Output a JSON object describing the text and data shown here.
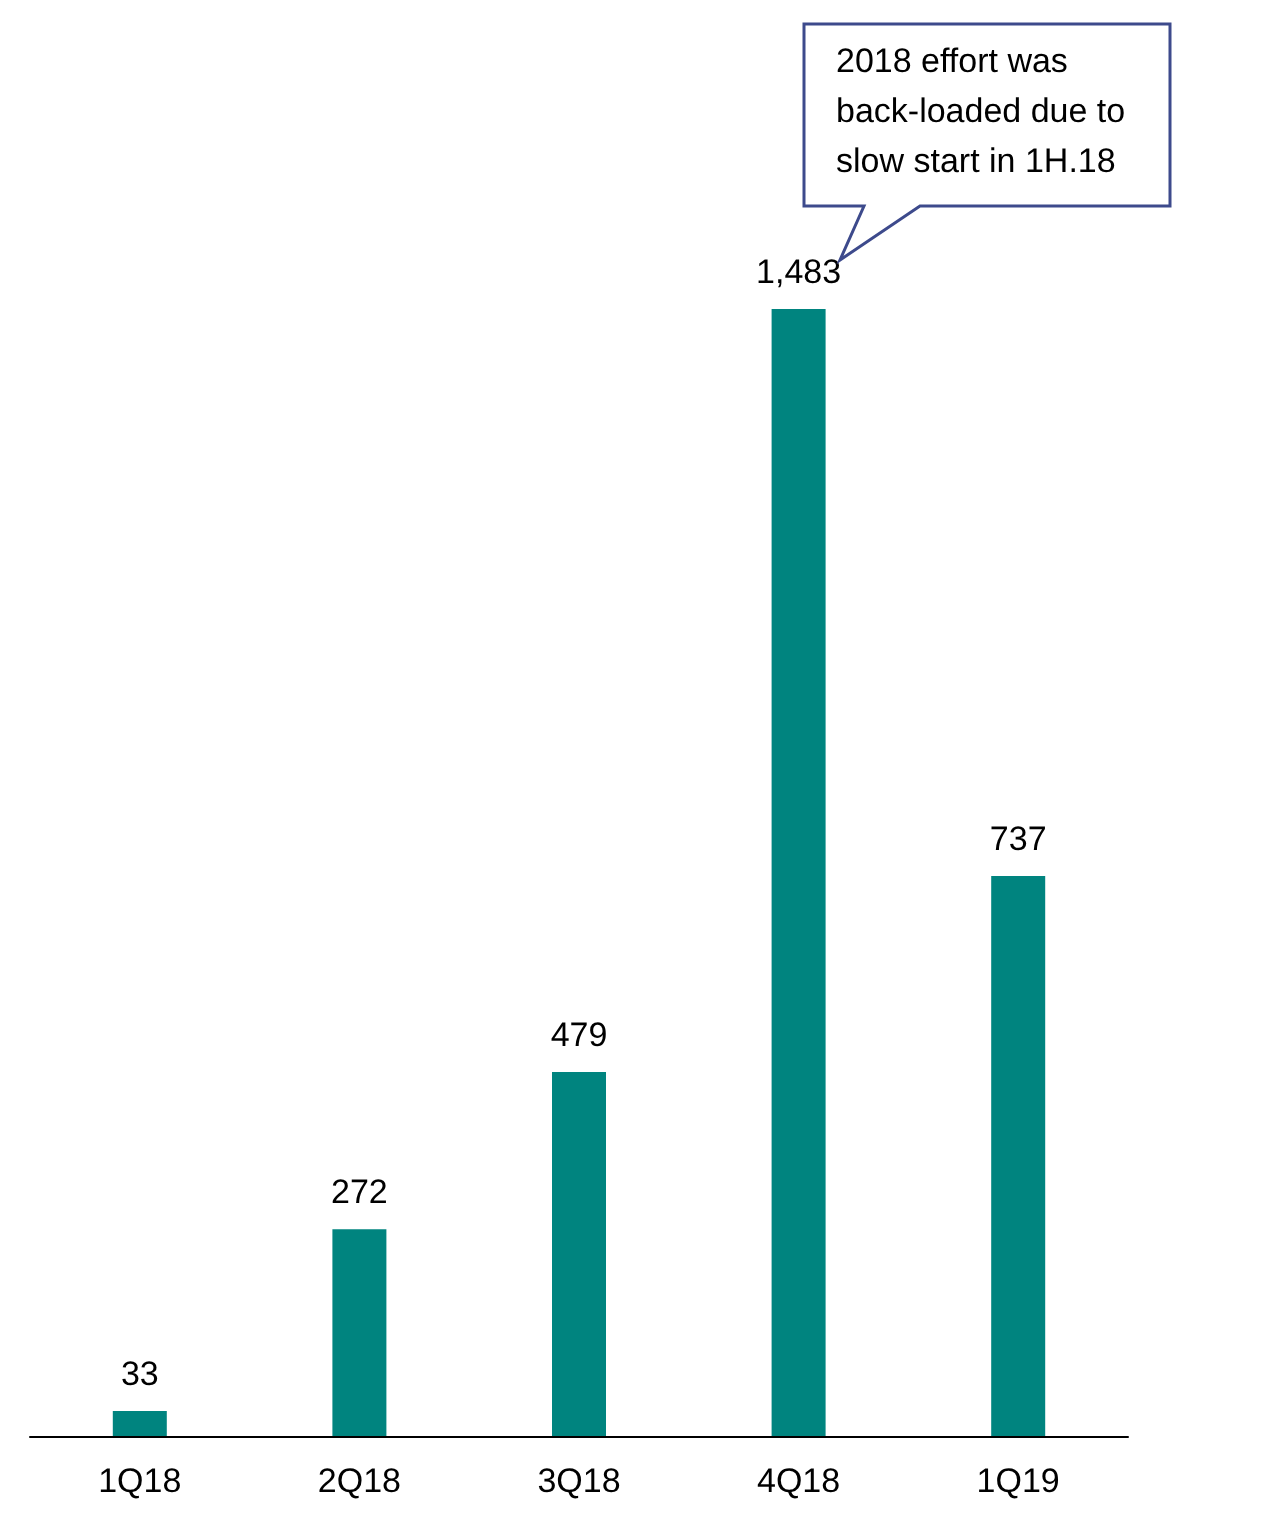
{
  "chart_data": {
    "type": "bar",
    "categories": [
      "1Q18",
      "2Q18",
      "3Q18",
      "4Q18",
      "1Q19"
    ],
    "values": [
      33,
      272,
      479,
      1483,
      737
    ],
    "value_labels": [
      "33",
      "272",
      "479",
      "1,483",
      "737"
    ],
    "color": "#00847f",
    "annotations": [
      "2018 effort was back-loaded due to slow start in 1H.18"
    ]
  }
}
